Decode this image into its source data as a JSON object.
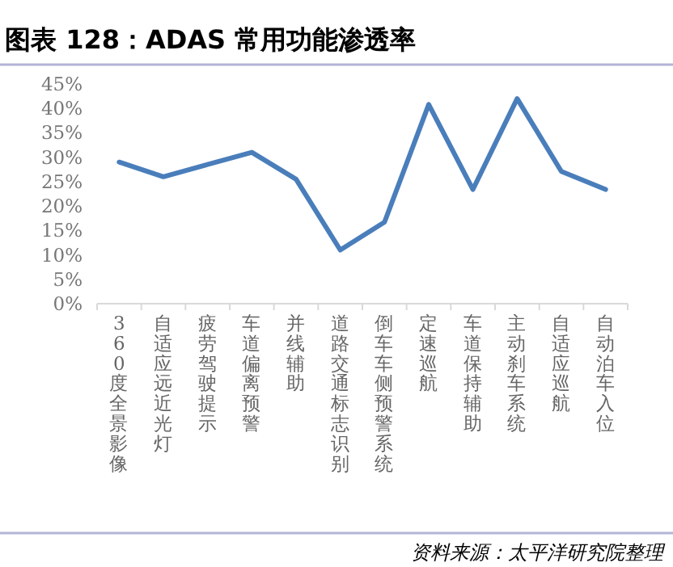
{
  "chart_data": {
    "type": "line",
    "title": "图表 128：ADAS 常用功能渗透率",
    "categories": [
      "360度全景影像",
      "自适应远近光灯",
      "疲劳驾驶提示",
      "车道偏离预警",
      "并线辅助",
      "道路交通标志识别",
      "倒车车侧预警系统",
      "定速巡航",
      "车道保持辅助",
      "主动刹车系统",
      "自适应巡航",
      "自动泊车入位"
    ],
    "values": [
      29,
      26,
      28.5,
      31,
      25.5,
      11,
      16.7,
      40.8,
      23.4,
      42,
      27.1,
      23.4
    ],
    "color": "#4a7ebb",
    "ylim": [
      0,
      45
    ],
    "yticks": [
      {
        "value": 0,
        "label": "0%"
      },
      {
        "value": 5,
        "label": "5%"
      },
      {
        "value": 10,
        "label": "10%"
      },
      {
        "value": 15,
        "label": "15%"
      },
      {
        "value": 20,
        "label": "20%"
      },
      {
        "value": 25,
        "label": "25%"
      },
      {
        "value": 30,
        "label": "30%"
      },
      {
        "value": 35,
        "label": "35%"
      },
      {
        "value": 40,
        "label": "40%"
      },
      {
        "value": 45,
        "label": "45%"
      }
    ],
    "grid": false,
    "marker": "none",
    "line_style": "solid",
    "annotations": [
      "资料来源：太平洋研究院整理"
    ]
  }
}
